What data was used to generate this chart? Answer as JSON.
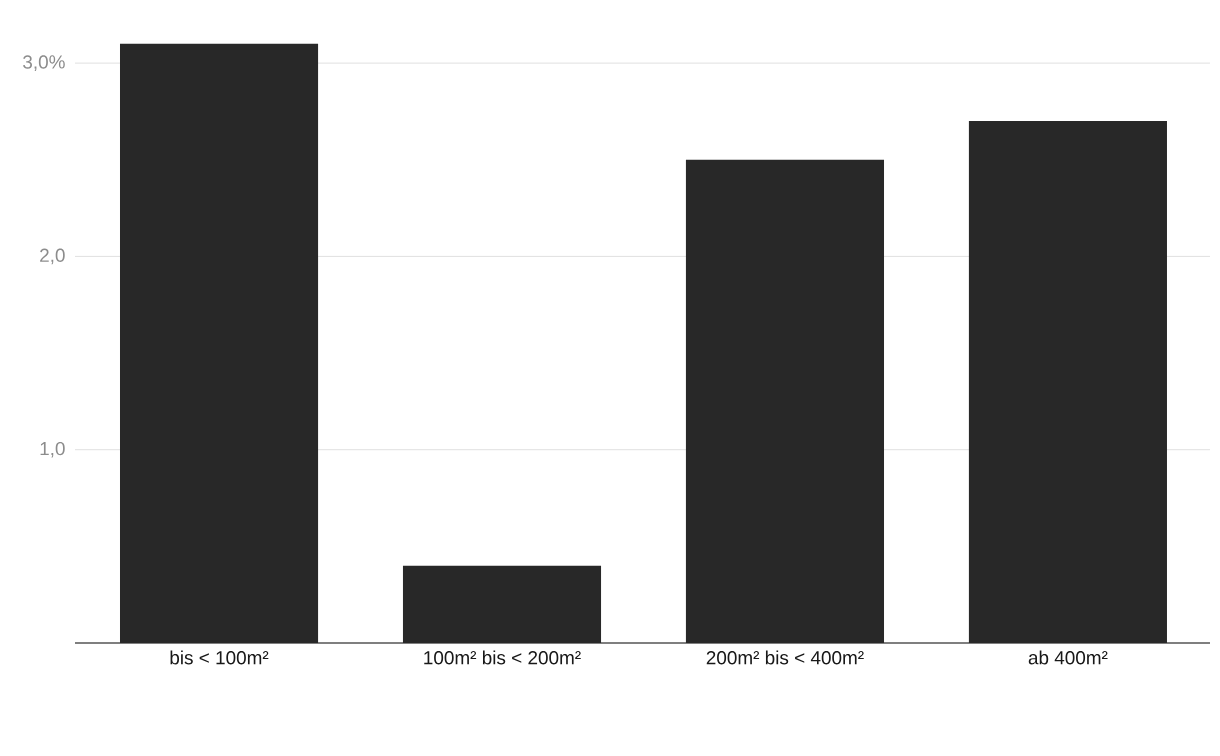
{
  "chart_data": {
    "type": "bar",
    "categories": [
      "bis < 100m²",
      "100m² bis < 200m²",
      "200m² bis < 400m²",
      "ab 400m²"
    ],
    "values": [
      3.1,
      0.4,
      2.5,
      2.7
    ],
    "color": "#282828",
    "ylim": [
      0,
      3.1
    ],
    "yticks": [
      {
        "value": 1,
        "label": "1,0"
      },
      {
        "value": 2,
        "label": "2,0"
      },
      {
        "value": 3,
        "label": "3,0%"
      }
    ],
    "grid": "y"
  }
}
